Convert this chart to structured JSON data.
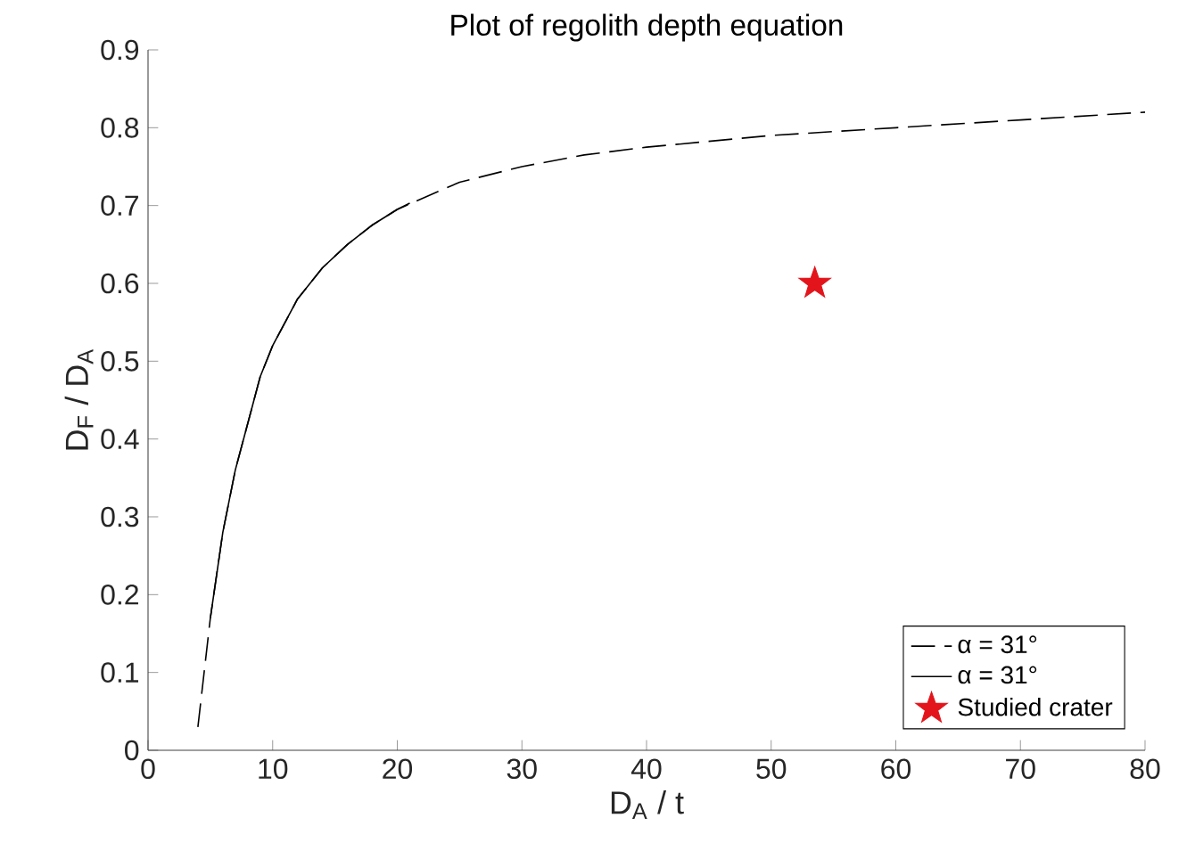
{
  "chart_data": {
    "type": "line",
    "title": "Plot of regolith depth equation",
    "xlabel": "D$_{A}$ / t",
    "ylabel": "D$_{F}$ / D$_{A}$",
    "xlim": [
      0,
      80
    ],
    "ylim": [
      0,
      0.9
    ],
    "xticks": [
      0,
      10,
      20,
      30,
      40,
      50,
      60,
      70,
      80
    ],
    "yticks": [
      0,
      0.1,
      0.2,
      0.3,
      0.4,
      0.5,
      0.6,
      0.7,
      0.8,
      0.9
    ],
    "legend": "bottom right",
    "series": [
      {
        "name": "α = 31°",
        "line_style": "dashed",
        "marker": "none",
        "color": "#000000",
        "x": [
          4,
          4.5,
          5,
          6,
          7,
          8,
          9,
          10,
          12,
          14,
          16,
          18,
          20,
          25,
          30,
          35,
          40,
          50,
          60,
          70,
          80
        ],
        "values": [
          0.03,
          0.1,
          0.17,
          0.28,
          0.36,
          0.42,
          0.48,
          0.52,
          0.58,
          0.62,
          0.65,
          0.675,
          0.695,
          0.73,
          0.75,
          0.765,
          0.775,
          0.79,
          0.8,
          0.81,
          0.82
        ]
      },
      {
        "name": "α = 31°",
        "line_style": "solid",
        "marker": "none",
        "color": "#000000",
        "x": [
          5,
          6,
          7,
          8,
          9,
          10,
          12,
          14,
          16,
          18,
          20,
          21
        ],
        "values": [
          0.17,
          0.28,
          0.36,
          0.42,
          0.48,
          0.52,
          0.58,
          0.62,
          0.65,
          0.675,
          0.695,
          0.703
        ]
      },
      {
        "name": "Studied crater",
        "type": "scatter",
        "marker": "star",
        "color": "#e3141b",
        "x": [
          53.5
        ],
        "values": [
          0.6
        ]
      }
    ]
  }
}
